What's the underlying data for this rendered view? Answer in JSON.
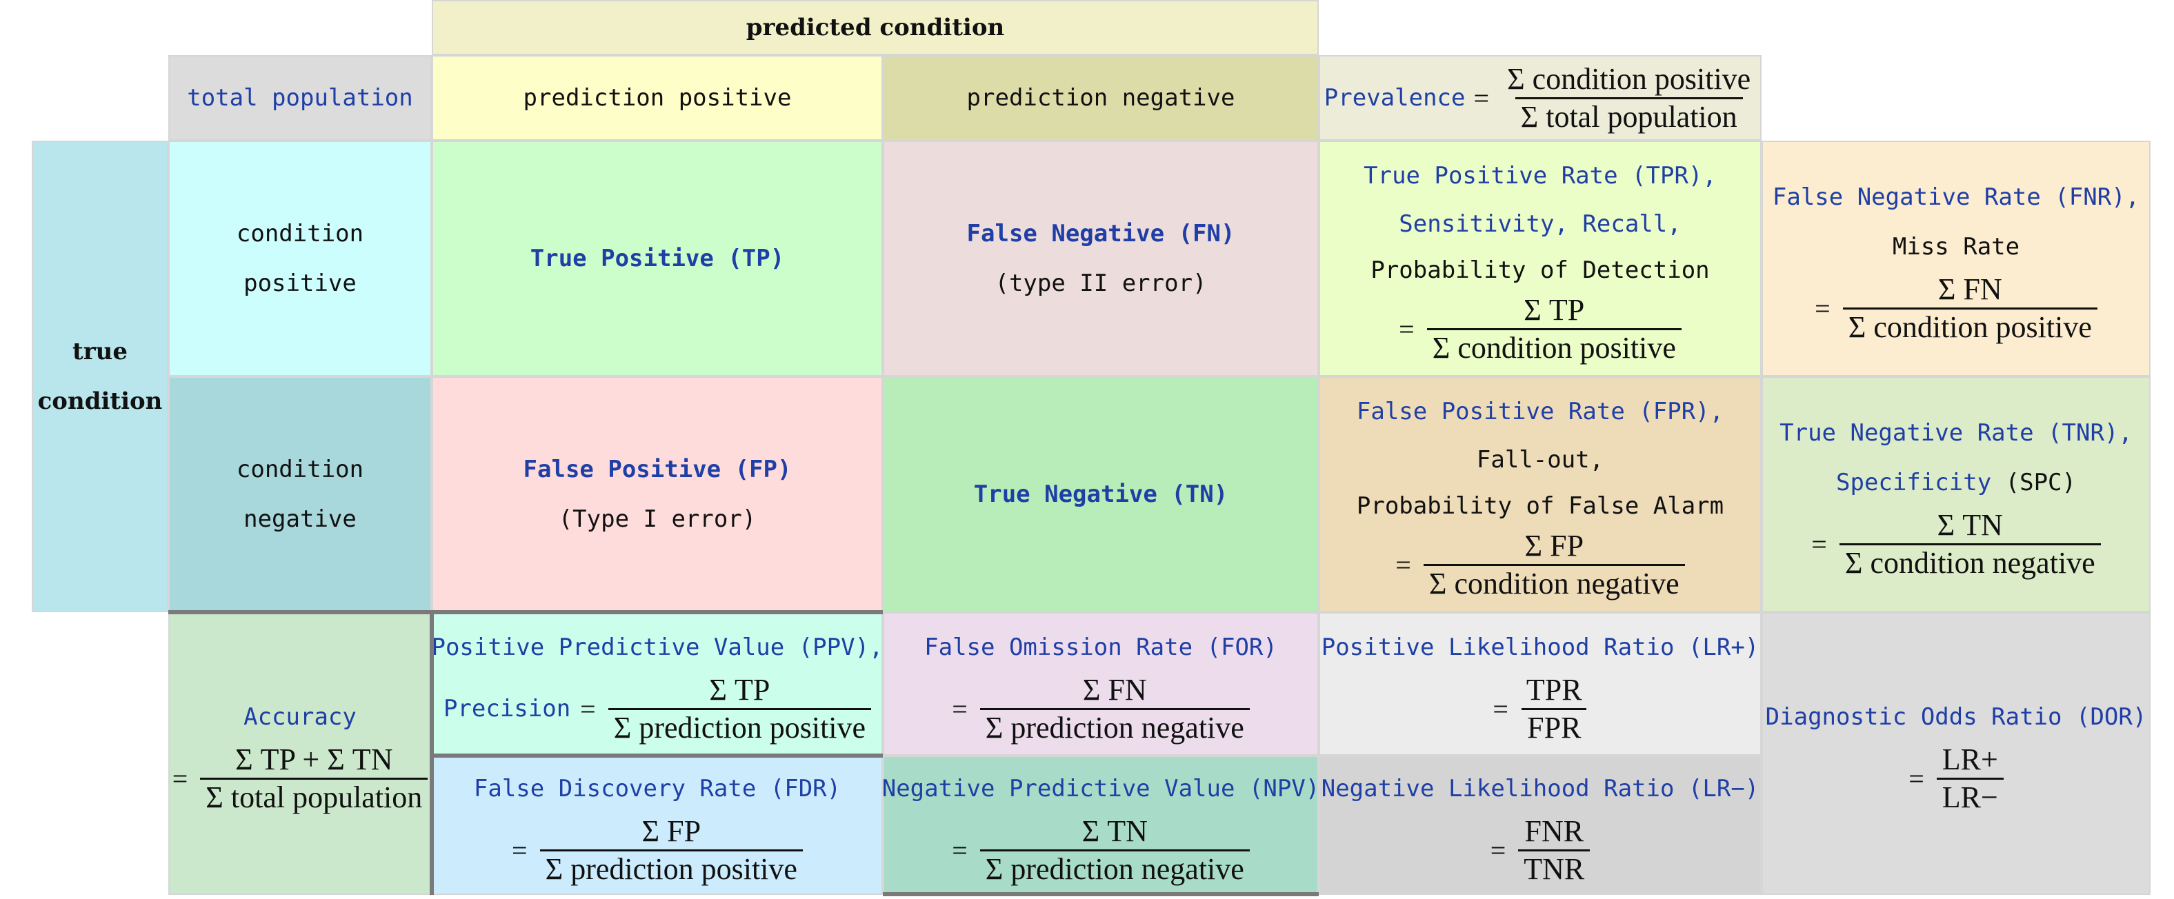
{
  "colors": {
    "header_yellow": "#f1f0c8",
    "total_pop": "#dcdcdc",
    "pred_pos": "#fefec8",
    "pred_neg": "#dcdca8",
    "prevalence": "#ececd8",
    "true_cond": "#b8e6ec",
    "cond_pos": "#ccfefe",
    "cond_neg": "#a8d8dc",
    "tp": "#ccfecc",
    "fn": "#ecdcdc",
    "fp": "#fedcdc",
    "tn": "#b8ecb8",
    "tpr": "#ecfec8",
    "fnr": "#fcecd0",
    "fpr": "#eedcb8",
    "tnr": "#dcecc8",
    "accuracy": "#cce8cc",
    "ppv": "#ccfeec",
    "fdr": "#ccecfe",
    "for": "#ecdcec",
    "npv": "#a8dcc8",
    "lrp": "#ececec",
    "lrn": "#d4d4d4",
    "dor": "#dcdcdc",
    "blue_text": "#1f3fa6"
  },
  "header": {
    "predicted_condition": "predicted condition"
  },
  "top_row": {
    "total_population": "total population",
    "prediction_positive": "prediction positive",
    "prediction_negative": "prediction negative",
    "prevalence_label": "Prevalence",
    "prevalence_eq": "=",
    "prevalence_num": "Σ condition positive",
    "prevalence_den": "Σ total population"
  },
  "true_condition": {
    "line1": "true",
    "line2": "condition"
  },
  "condition_positive": {
    "line1": "condition",
    "line2": "positive"
  },
  "condition_negative": {
    "line1": "condition",
    "line2": "negative"
  },
  "tp": {
    "label": "True Positive (TP)"
  },
  "fn": {
    "label": "False Negative (FN)",
    "sub": "(type II error)"
  },
  "fp": {
    "label": "False Positive (FP)",
    "sub": "(Type I error)"
  },
  "tn": {
    "label": "True Negative (TN)"
  },
  "tpr": {
    "line1": "True Positive Rate (TPR),",
    "line2": "Sensitivity, Recall,",
    "line3": "Probability of Detection",
    "eq": "=",
    "num": "Σ TP",
    "den": "Σ condition positive"
  },
  "fnr": {
    "line1": "False Negative Rate (FNR),",
    "line2": "Miss Rate",
    "eq": "=",
    "num": "Σ FN",
    "den": "Σ condition positive"
  },
  "fpr": {
    "line1": "False Positive Rate (FPR),",
    "line2": "Fall-out,",
    "line3": "Probability of False Alarm",
    "eq": "=",
    "num": "Σ FP",
    "den": "Σ condition negative"
  },
  "tnr": {
    "line1": "True Negative Rate (TNR),",
    "line2a": "Specificity",
    "line2b": " (SPC)",
    "eq": "=",
    "num": "Σ TN",
    "den": "Σ condition negative"
  },
  "accuracy": {
    "label": "Accuracy",
    "eq": "=",
    "num": "Σ TP + Σ TN",
    "den": "Σ total population"
  },
  "ppv": {
    "line1": "Positive Predictive Value (PPV),",
    "line2": "Precision",
    "eq": "=",
    "num": "Σ TP",
    "den": "Σ prediction positive"
  },
  "for": {
    "line1": "False Omission Rate (FOR)",
    "eq": "=",
    "num": "Σ FN",
    "den": "Σ prediction negative"
  },
  "fdr": {
    "line1": "False Discovery Rate (FDR)",
    "eq": "=",
    "num": "Σ FP",
    "den": "Σ prediction positive"
  },
  "npv": {
    "line1": "Negative Predictive Value (NPV)",
    "eq": "=",
    "num": "Σ TN",
    "den": "Σ prediction negative"
  },
  "lrp": {
    "line1": "Positive Likelihood Ratio (LR+)",
    "eq": "=",
    "num": "TPR",
    "den": "FPR"
  },
  "lrn": {
    "line1": "Negative Likelihood Ratio (LR−)",
    "eq": "=",
    "num": "FNR",
    "den": "TNR"
  },
  "dor": {
    "line1": "Diagnostic Odds Ratio (DOR)",
    "eq": "=",
    "num": "LR+",
    "den": "LR−"
  }
}
